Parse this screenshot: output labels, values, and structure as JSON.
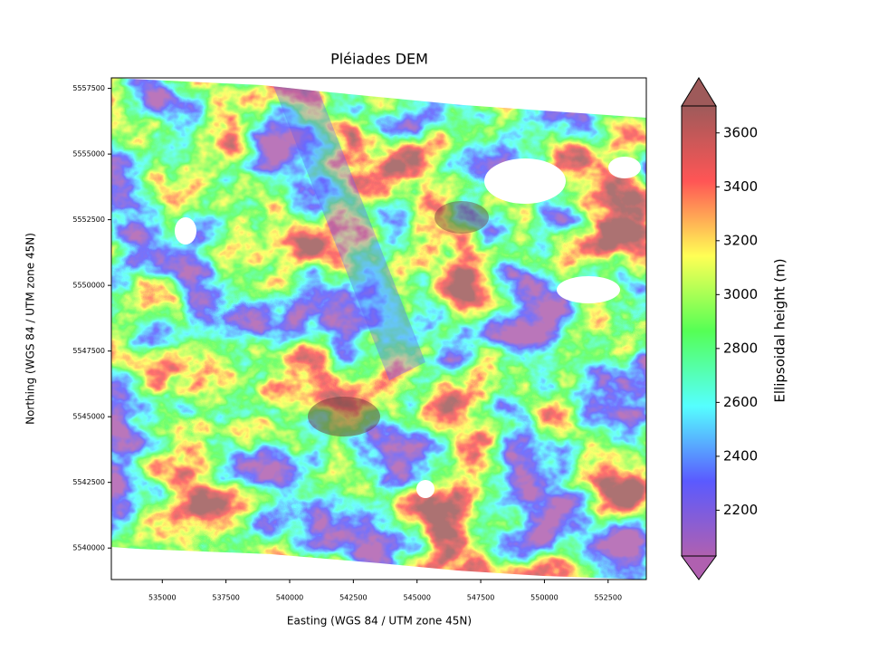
{
  "chart_data": {
    "type": "raster",
    "title": "Pléiades DEM",
    "x_axis": {
      "label": "Easting (WGS 84 / UTM zone 45N)",
      "lim": [
        533000,
        554000
      ],
      "ticks": [
        535000,
        537500,
        540000,
        542500,
        545000,
        547500,
        550000,
        552500
      ]
    },
    "y_axis": {
      "label": "Northing (WGS 84 / UTM zone 45N)",
      "lim": [
        5538800,
        5557900
      ],
      "ticks": [
        5540000,
        5542500,
        5545000,
        5547500,
        5550000,
        5552500,
        5555000,
        5557500
      ]
    },
    "colorbar": {
      "label": "Ellipsoidal height (m)",
      "lim": [
        2030,
        3700
      ],
      "ticks": [
        2200,
        2400,
        2600,
        2800,
        3000,
        3200,
        3400,
        3600
      ],
      "colors": [
        "#b060b0",
        "#5a5aff",
        "#55ffff",
        "#55ff55",
        "#ffff55",
        "#ff5555",
        "#9e5a5a"
      ]
    }
  }
}
